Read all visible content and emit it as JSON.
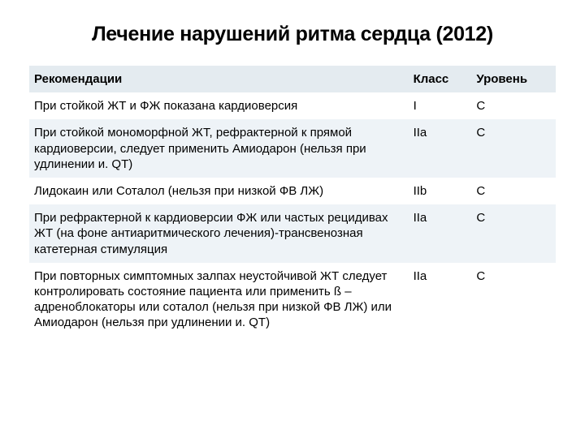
{
  "title": "Лечение нарушений ритма сердца (2012)",
  "table": {
    "type": "table",
    "background_color": "#ffffff",
    "header_bg": "#e4ebf0",
    "row_odd_bg": "#ffffff",
    "row_even_bg": "#eef3f7",
    "text_color": "#000000",
    "font_family": "Arial",
    "header_fontsize": 15,
    "cell_fontsize": 15,
    "columns": [
      {
        "label": "Рекомендации",
        "width_pct": 72,
        "align": "left"
      },
      {
        "label": "Класс",
        "width_pct": 12,
        "align": "left"
      },
      {
        "label": "Уровень",
        "width_pct": 16,
        "align": "left"
      }
    ],
    "rows": [
      {
        "recommendation": "При стойкой ЖТ и ФЖ показана кардиоверсия",
        "class": "I",
        "level": "C"
      },
      {
        "recommendation": "При стойкой мономорфной ЖТ, рефрактерной к прямой кардиоверсии, следует применить Амиодарон (нельзя при удлинении и. QT)",
        "class": "IIa",
        "level": "C"
      },
      {
        "recommendation": "Лидокаин или Соталол (нельзя при низкой ФВ ЛЖ)",
        "class": "IIb",
        "level": "C"
      },
      {
        "recommendation": "При рефрактерной к кардиоверсии ФЖ или частых рецидивах ЖТ (на фоне антиаритмического лечения)-трансвенозная катетерная стимуляция",
        "class": "IIa",
        "level": "C"
      },
      {
        "recommendation": "При повторных симптомных залпах неустойчивой ЖТ следует контролировать состояние пациента или применить ß – адреноблокаторы или соталол (нельзя при низкой ФВ ЛЖ) или Амиодарон (нельзя при удлинении и. QT)",
        "class": "IIa",
        "level": "C"
      }
    ]
  }
}
